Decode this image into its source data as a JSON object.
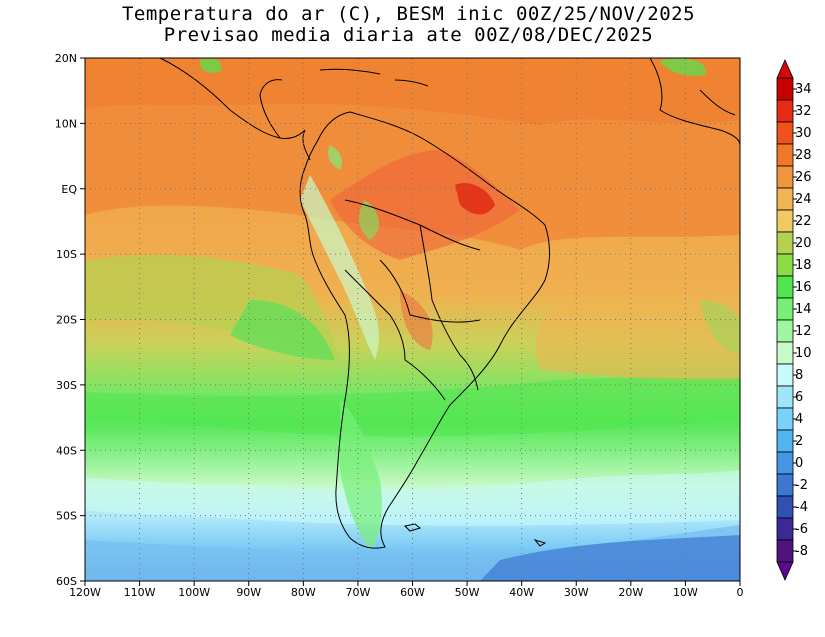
{
  "title_line1": "Temperatura do ar (C), BESM inic 00Z/25/NOV/2025",
  "title_line2": "Previsao media diaria ate 00Z/08/DEC/2025",
  "map": {
    "lon_range": [
      -120,
      0
    ],
    "lat_range": [
      -60,
      20
    ],
    "lat_labels": [
      "20N",
      "10N",
      "EQ",
      "10S",
      "20S",
      "30S",
      "40S",
      "50S",
      "60S"
    ],
    "lat_values": [
      20,
      10,
      0,
      -10,
      -20,
      -30,
      -40,
      -50,
      -60
    ],
    "lon_labels": [
      "120W",
      "110W",
      "100W",
      "90W",
      "80W",
      "70W",
      "60W",
      "50W",
      "40W",
      "30W",
      "20W",
      "10W",
      "0"
    ],
    "lon_values": [
      -120,
      -110,
      -100,
      -90,
      -80,
      -70,
      -60,
      -50,
      -40,
      -30,
      -20,
      -10,
      0
    ],
    "variable": "Temperatura do ar",
    "units": "C"
  },
  "colorbar": {
    "labels": [
      "34",
      "32",
      "30",
      "28",
      "26",
      "24",
      "22",
      "20",
      "18",
      "16",
      "14",
      "12",
      "10",
      "8",
      "6",
      "4",
      "2",
      "0",
      "-2",
      "-4",
      "-6",
      "-8"
    ],
    "colors": [
      "#c80000",
      "#e62a14",
      "#f0521e",
      "#f07828",
      "#f0963c",
      "#f0b450",
      "#f0c864",
      "#b4d250",
      "#8cdc46",
      "#50e650",
      "#78f078",
      "#a0f5a0",
      "#c8fac8",
      "#c8fafa",
      "#a0e6fa",
      "#78d2fa",
      "#50b4f0",
      "#4696e6",
      "#3c78d2",
      "#3250b4",
      "#3c2896",
      "#50147f"
    ]
  }
}
